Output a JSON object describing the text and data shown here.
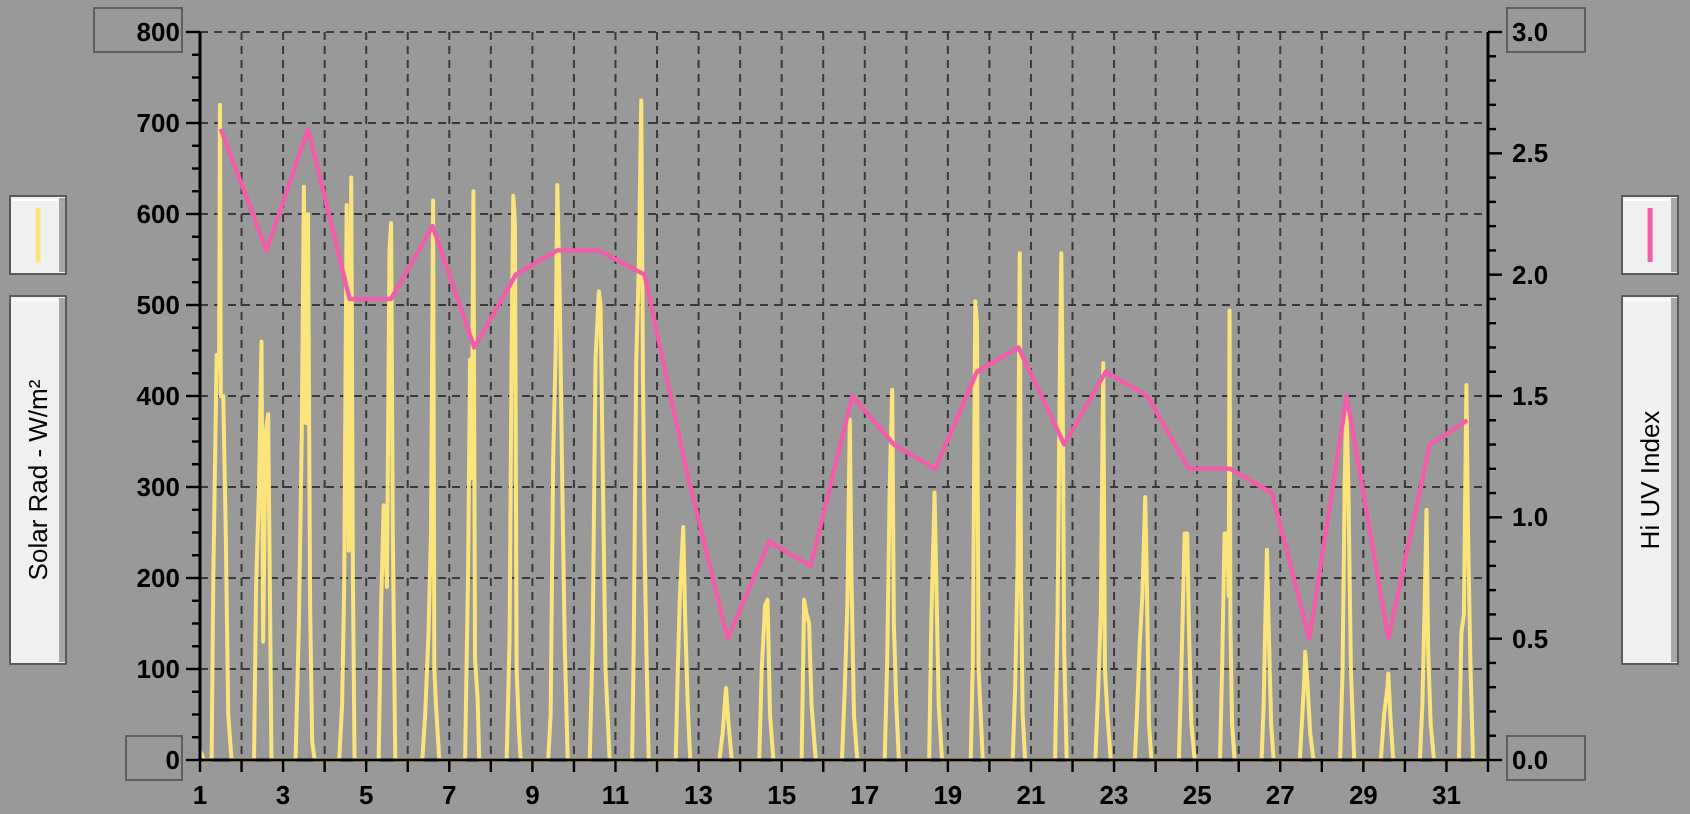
{
  "chart_data": {
    "type": "line",
    "ylabel": "Solar Rad - W/m²",
    "y2label": "Hi UV Index",
    "xlim": [
      1,
      32
    ],
    "xticks": [
      1,
      {
        "value": 2,
        "label": null
      },
      3,
      {
        "value": 4,
        "label": null
      },
      5,
      {
        "value": 6,
        "label": null
      },
      7,
      {
        "value": 8,
        "label": null
      },
      9,
      {
        "value": 10,
        "label": null
      },
      11,
      {
        "value": 12,
        "label": null
      },
      13,
      {
        "value": 14,
        "label": null
      },
      15,
      {
        "value": 16,
        "label": null
      },
      17,
      {
        "value": 18,
        "label": null
      },
      19,
      {
        "value": 20,
        "label": null
      },
      21,
      {
        "value": 22,
        "label": null
      },
      23,
      {
        "value": 24,
        "label": null
      },
      25,
      {
        "value": 26,
        "label": null
      },
      27,
      {
        "value": 28,
        "label": null
      },
      29,
      {
        "value": 30,
        "label": null
      },
      31,
      {
        "value": 32,
        "label": null
      }
    ],
    "ylim": [
      0,
      800
    ],
    "yticks": [
      0,
      {
        "value": 25,
        "label": null
      },
      {
        "value": 50,
        "label": null
      },
      {
        "value": 75,
        "label": null
      },
      100,
      {
        "value": 125,
        "label": null
      },
      {
        "value": 150,
        "label": null
      },
      {
        "value": 175,
        "label": null
      },
      200,
      {
        "value": 225,
        "label": null
      },
      {
        "value": 250,
        "label": null
      },
      {
        "value": 275,
        "label": null
      },
      300,
      {
        "value": 325,
        "label": null
      },
      {
        "value": 350,
        "label": null
      },
      {
        "value": 375,
        "label": null
      },
      400,
      {
        "value": 425,
        "label": null
      },
      {
        "value": 450,
        "label": null
      },
      {
        "value": 475,
        "label": null
      },
      500,
      {
        "value": 525,
        "label": null
      },
      {
        "value": 550,
        "label": null
      },
      {
        "value": 575,
        "label": null
      },
      600,
      {
        "value": 625,
        "label": null
      },
      {
        "value": 650,
        "label": null
      },
      {
        "value": 675,
        "label": null
      },
      700,
      {
        "value": 725,
        "label": null
      },
      {
        "value": 750,
        "label": null
      },
      {
        "value": 775,
        "label": null
      },
      800
    ],
    "y2lim": [
      0,
      3
    ],
    "y2ticks": [
      {
        "value": 0,
        "label": "0.0"
      },
      {
        "value": 0.1,
        "label": null
      },
      {
        "value": 0.2,
        "label": null
      },
      {
        "value": 0.3,
        "label": null
      },
      {
        "value": 0.4,
        "label": null
      },
      0.5,
      {
        "value": 0.6,
        "label": null
      },
      {
        "value": 0.7,
        "label": null
      },
      {
        "value": 0.8,
        "label": null
      },
      {
        "value": 0.9,
        "label": null
      },
      {
        "value": 1,
        "label": "1.0"
      },
      {
        "value": 1.1,
        "label": null
      },
      {
        "value": 1.2,
        "label": null
      },
      {
        "value": 1.3,
        "label": null
      },
      {
        "value": 1.4,
        "label": null
      },
      1.5,
      {
        "value": 1.6,
        "label": null
      },
      {
        "value": 1.7,
        "label": null
      },
      {
        "value": 1.8,
        "label": null
      },
      {
        "value": 1.9,
        "label": null
      },
      {
        "value": 2,
        "label": "2.0"
      },
      {
        "value": 2.1,
        "label": null
      },
      {
        "value": 2.2,
        "label": null
      },
      {
        "value": 2.3,
        "label": null
      },
      {
        "value": 2.4,
        "label": null
      },
      2.5,
      {
        "value": 2.6,
        "label": null
      },
      {
        "value": 2.7,
        "label": null
      },
      {
        "value": 2.8,
        "label": null
      },
      {
        "value": 2.9,
        "label": null
      },
      {
        "value": 3,
        "label": "3.0"
      }
    ],
    "grid": true,
    "series": [
      {
        "color": "#fbe47c",
        "x": [
          1,
          1.1,
          1.28,
          1.32,
          1.36,
          1.4,
          1.46,
          1.48,
          1.5,
          1.56,
          1.62,
          1.68,
          1.76,
          2.3,
          2.35,
          2.42,
          2.48,
          2.52,
          2.58,
          2.64,
          2.68,
          2.72,
          3.3,
          3.38,
          3.45,
          3.5,
          3.55,
          3.6,
          3.65,
          3.7,
          3.76,
          4.35,
          4.42,
          4.47,
          4.53,
          4.58,
          4.64,
          4.68,
          4.72,
          5.3,
          5.36,
          5.42,
          5.5,
          5.56,
          5.6,
          5.64,
          5.7,
          6.35,
          6.42,
          6.5,
          6.56,
          6.61,
          6.64,
          6.68,
          6.76,
          7.38,
          7.45,
          7.5,
          7.54,
          7.58,
          7.62,
          7.68,
          7.72,
          8.38,
          8.45,
          8.5,
          8.54,
          8.58,
          8.62,
          8.68,
          8.72,
          9.38,
          9.44,
          9.5,
          9.56,
          9.6,
          9.66,
          9.72,
          9.78,
          9.85,
          10.38,
          10.45,
          10.52,
          10.6,
          10.64,
          10.7,
          10.76,
          10.86,
          11.4,
          11.44,
          11.5,
          11.56,
          11.62,
          11.66,
          11.7,
          11.74,
          11.8,
          12.45,
          12.5,
          12.55,
          12.63,
          12.68,
          12.74,
          12.8,
          13.5,
          13.58,
          13.66,
          13.72,
          13.8,
          14.46,
          14.52,
          14.6,
          14.66,
          14.72,
          14.8,
          15.48,
          15.54,
          15.6,
          15.66,
          15.72,
          15.82,
          16.45,
          16.52,
          16.58,
          16.64,
          16.68,
          16.74,
          16.82,
          17.48,
          17.54,
          17.6,
          17.66,
          17.7,
          17.76,
          17.82,
          18.55,
          18.6,
          18.68,
          18.72,
          18.78,
          18.86,
          19.55,
          19.6,
          19.66,
          19.7,
          19.74,
          19.84,
          20.56,
          20.62,
          20.68,
          20.73,
          20.76,
          20.8,
          20.86,
          21.58,
          21.64,
          21.7,
          21.73,
          21.76,
          21.8,
          21.86,
          22.55,
          22.62,
          22.68,
          22.74,
          22.78,
          22.84,
          22.92,
          23.5,
          23.56,
          23.62,
          23.68,
          23.75,
          23.78,
          23.84,
          23.9,
          24.56,
          24.62,
          24.7,
          24.76,
          24.8,
          24.86,
          24.94,
          25.55,
          25.6,
          25.66,
          25.72,
          25.76,
          25.78,
          25.8,
          25.84,
          25.9,
          26.55,
          26.6,
          26.64,
          26.68,
          26.72,
          26.78,
          26.84,
          27.47,
          27.52,
          27.58,
          27.6,
          27.66,
          27.72,
          27.8,
          28.44,
          28.5,
          28.55,
          28.59,
          28.64,
          28.7,
          28.78,
          29.42,
          29.5,
          29.58,
          29.6,
          29.66,
          29.72,
          30.36,
          30.42,
          30.48,
          30.52,
          30.56,
          30.62,
          30.7,
          31.3,
          31.36,
          31.42,
          31.48,
          31.52,
          31.58,
          31.64,
          32
        ],
        "values": [
          10,
          0,
          0,
          200,
          320,
          445,
          430,
          720,
          400,
          400,
          250,
          50,
          0,
          0,
          190,
          300,
          460,
          130,
          360,
          380,
          200,
          0,
          0,
          150,
          360,
          630,
          370,
          600,
          170,
          20,
          0,
          0,
          60,
          190,
          610,
          230,
          640,
          200,
          0,
          0,
          170,
          280,
          190,
          560,
          590,
          250,
          0,
          0,
          50,
          140,
          250,
          615,
          100,
          60,
          0,
          0,
          200,
          440,
          310,
          625,
          110,
          70,
          0,
          0,
          130,
          450,
          620,
          590,
          100,
          30,
          0,
          0,
          50,
          330,
          450,
          632,
          505,
          300,
          125,
          0,
          0,
          130,
          440,
          515,
          500,
          300,
          100,
          0,
          0,
          130,
          440,
          540,
          725,
          430,
          240,
          130,
          0,
          0,
          100,
          180,
          256,
          150,
          60,
          0,
          0,
          30,
          79,
          40,
          0,
          0,
          100,
          170,
          176,
          50,
          0,
          0,
          176,
          160,
          150,
          60,
          0,
          0,
          80,
          170,
          374,
          200,
          50,
          0,
          0,
          110,
          300,
          407,
          150,
          60,
          0,
          0,
          150,
          294,
          200,
          60,
          0,
          0,
          110,
          504,
          480,
          100,
          0,
          0,
          80,
          220,
          557,
          200,
          50,
          0,
          0,
          160,
          450,
          557,
          430,
          120,
          0,
          0,
          80,
          160,
          436,
          100,
          50,
          0,
          0,
          60,
          130,
          180,
          289,
          220,
          40,
          0,
          0,
          100,
          249,
          249,
          150,
          40,
          0,
          0,
          100,
          249,
          249,
          180,
          494,
          150,
          40,
          0,
          0,
          60,
          150,
          231,
          150,
          40,
          0,
          0,
          40,
          90,
          119,
          80,
          30,
          0,
          0,
          100,
          300,
          396,
          300,
          100,
          0,
          0,
          50,
          80,
          95,
          40,
          0,
          0,
          60,
          180,
          275,
          120,
          40,
          0,
          0,
          140,
          160,
          412,
          250,
          100,
          0,
          0
        ]
      },
      {
        "color": "#f25ca8",
        "axis": "y2",
        "x": [
          1.5,
          2.6,
          3.6,
          4.6,
          5.6,
          6.6,
          7.6,
          8.6,
          9.6,
          10.6,
          11.7,
          12.7,
          13.7,
          14.7,
          15.7,
          16.7,
          17.7,
          18.7,
          19.7,
          20.7,
          21.8,
          22.8,
          23.8,
          24.8,
          25.8,
          26.8,
          27.7,
          28.6,
          29.6,
          30.6,
          31.5
        ],
        "values": [
          2.6,
          2.1,
          2.6,
          1.9,
          1.9,
          2.2,
          1.7,
          2.0,
          2.1,
          2.1,
          2.0,
          1.2,
          0.5,
          0.9,
          0.8,
          1.5,
          1.3,
          1.2,
          1.6,
          1.7,
          1.3,
          1.6,
          1.5,
          1.2,
          1.2,
          1.1,
          0.5,
          1.5,
          0.5,
          1.3,
          1.4
        ]
      }
    ]
  }
}
